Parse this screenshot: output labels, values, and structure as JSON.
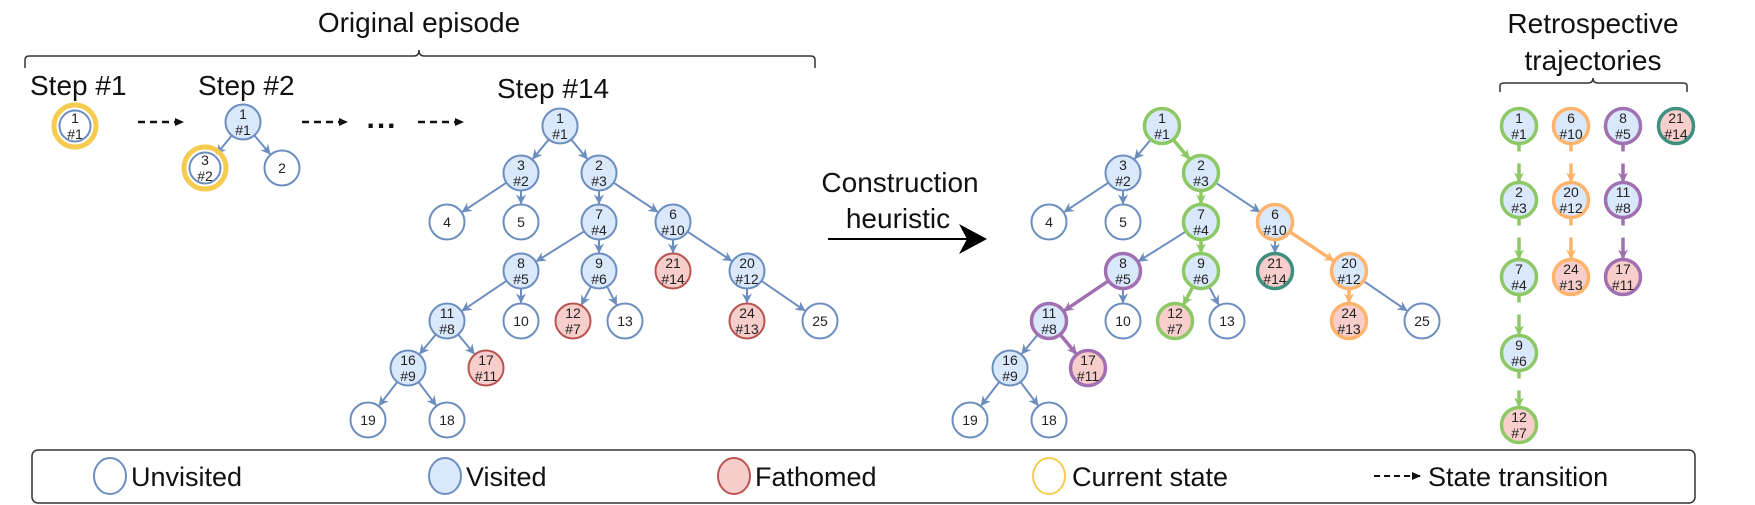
{
  "titles": {
    "original": "Original episode",
    "retro_line1": "Retrospective",
    "retro_line2": "trajectories",
    "step1": "Step #1",
    "step2": "Step #2",
    "step14": "Step #14",
    "heuristic_line1": "Construction",
    "heuristic_line2": "heuristic",
    "ellipsis": "..."
  },
  "colors": {
    "blue": "#6c8ebf",
    "visited_fill": "#dae8fc",
    "fathomed_fill": "#f8cecc",
    "fathomed_stroke": "#b85450",
    "current": "#f5cc4f",
    "green": "#8cc864",
    "orange": "#ffb36b",
    "purple": "#a070b0",
    "teal": "#3f8f7f"
  },
  "trees": {
    "step1": {
      "nodes": [
        {
          "id": "1",
          "visit": "#1",
          "status": "unvisited",
          "ring": "current"
        }
      ],
      "edges": []
    },
    "step2": {
      "nodes": [
        {
          "id": "1",
          "visit": "#1",
          "status": "visited"
        },
        {
          "id": "3",
          "visit": "#2",
          "status": "unvisited",
          "ring": "current"
        },
        {
          "id": "2",
          "visit": "",
          "status": "unvisited"
        }
      ],
      "edges": [
        [
          "1",
          "3",
          "blue"
        ],
        [
          "1",
          "2",
          "blue"
        ]
      ]
    },
    "step14": {
      "nodes": [
        {
          "id": "1",
          "visit": "#1",
          "status": "visited"
        },
        {
          "id": "3",
          "visit": "#2",
          "status": "visited"
        },
        {
          "id": "2",
          "visit": "#3",
          "status": "visited"
        },
        {
          "id": "4",
          "visit": "",
          "status": "unvisited"
        },
        {
          "id": "5",
          "visit": "",
          "status": "unvisited"
        },
        {
          "id": "7",
          "visit": "#4",
          "status": "visited"
        },
        {
          "id": "6",
          "visit": "#10",
          "status": "visited"
        },
        {
          "id": "8",
          "visit": "#5",
          "status": "visited"
        },
        {
          "id": "9",
          "visit": "#6",
          "status": "visited"
        },
        {
          "id": "21",
          "visit": "#14",
          "status": "fathomed"
        },
        {
          "id": "20",
          "visit": "#12",
          "status": "visited"
        },
        {
          "id": "11",
          "visit": "#8",
          "status": "visited"
        },
        {
          "id": "10",
          "visit": "",
          "status": "unvisited"
        },
        {
          "id": "12",
          "visit": "#7",
          "status": "fathomed"
        },
        {
          "id": "13",
          "visit": "",
          "status": "unvisited"
        },
        {
          "id": "24",
          "visit": "#13",
          "status": "fathomed"
        },
        {
          "id": "25",
          "visit": "",
          "status": "unvisited"
        },
        {
          "id": "16",
          "visit": "#9",
          "status": "visited"
        },
        {
          "id": "17",
          "visit": "#11",
          "status": "fathomed"
        },
        {
          "id": "19",
          "visit": "",
          "status": "unvisited"
        },
        {
          "id": "18",
          "visit": "",
          "status": "unvisited"
        }
      ],
      "edges": [
        [
          "1",
          "3",
          "blue"
        ],
        [
          "1",
          "2",
          "blue"
        ],
        [
          "3",
          "4",
          "blue"
        ],
        [
          "3",
          "5",
          "blue"
        ],
        [
          "2",
          "7",
          "blue"
        ],
        [
          "2",
          "6",
          "blue"
        ],
        [
          "7",
          "8",
          "blue"
        ],
        [
          "7",
          "9",
          "blue"
        ],
        [
          "6",
          "21",
          "blue"
        ],
        [
          "6",
          "20",
          "blue"
        ],
        [
          "8",
          "11",
          "blue"
        ],
        [
          "8",
          "10",
          "blue"
        ],
        [
          "9",
          "12",
          "blue"
        ],
        [
          "9",
          "13",
          "blue"
        ],
        [
          "20",
          "24",
          "blue"
        ],
        [
          "20",
          "25",
          "blue"
        ],
        [
          "11",
          "16",
          "blue"
        ],
        [
          "11",
          "17",
          "blue"
        ],
        [
          "16",
          "19",
          "blue"
        ],
        [
          "16",
          "18",
          "blue"
        ]
      ]
    },
    "heuristic": {
      "nodes": [
        {
          "id": "1",
          "visit": "#1",
          "status": "visited",
          "stroke": "green"
        },
        {
          "id": "3",
          "visit": "#2",
          "status": "visited"
        },
        {
          "id": "2",
          "visit": "#3",
          "status": "visited",
          "stroke": "green"
        },
        {
          "id": "4",
          "visit": "",
          "status": "unvisited"
        },
        {
          "id": "5",
          "visit": "",
          "status": "unvisited"
        },
        {
          "id": "7",
          "visit": "#4",
          "status": "visited",
          "stroke": "green"
        },
        {
          "id": "6",
          "visit": "#10",
          "status": "visited",
          "stroke": "orange"
        },
        {
          "id": "8",
          "visit": "#5",
          "status": "visited",
          "stroke": "purple"
        },
        {
          "id": "9",
          "visit": "#6",
          "status": "visited",
          "stroke": "green"
        },
        {
          "id": "21",
          "visit": "#14",
          "status": "fathomed",
          "stroke": "teal"
        },
        {
          "id": "20",
          "visit": "#12",
          "status": "visited",
          "stroke": "orange"
        },
        {
          "id": "11",
          "visit": "#8",
          "status": "visited",
          "stroke": "purple"
        },
        {
          "id": "10",
          "visit": "",
          "status": "unvisited"
        },
        {
          "id": "12",
          "visit": "#7",
          "status": "fathomed",
          "stroke": "green"
        },
        {
          "id": "13",
          "visit": "",
          "status": "unvisited"
        },
        {
          "id": "24",
          "visit": "#13",
          "status": "fathomed",
          "stroke": "orange"
        },
        {
          "id": "25",
          "visit": "",
          "status": "unvisited"
        },
        {
          "id": "16",
          "visit": "#9",
          "status": "visited"
        },
        {
          "id": "17",
          "visit": "#11",
          "status": "fathomed",
          "stroke": "purple"
        },
        {
          "id": "19",
          "visit": "",
          "status": "unvisited"
        },
        {
          "id": "18",
          "visit": "",
          "status": "unvisited"
        }
      ],
      "edges": [
        [
          "1",
          "3",
          "blue"
        ],
        [
          "1",
          "2",
          "green"
        ],
        [
          "3",
          "4",
          "blue"
        ],
        [
          "3",
          "5",
          "blue"
        ],
        [
          "2",
          "7",
          "green"
        ],
        [
          "2",
          "6",
          "blue"
        ],
        [
          "7",
          "8",
          "blue"
        ],
        [
          "7",
          "9",
          "green"
        ],
        [
          "6",
          "21",
          "blue"
        ],
        [
          "6",
          "20",
          "orange"
        ],
        [
          "8",
          "11",
          "purple"
        ],
        [
          "8",
          "10",
          "blue"
        ],
        [
          "9",
          "12",
          "green"
        ],
        [
          "9",
          "13",
          "blue"
        ],
        [
          "20",
          "24",
          "orange"
        ],
        [
          "20",
          "25",
          "blue"
        ],
        [
          "11",
          "16",
          "blue"
        ],
        [
          "11",
          "17",
          "purple"
        ],
        [
          "16",
          "19",
          "blue"
        ],
        [
          "16",
          "18",
          "blue"
        ]
      ]
    }
  },
  "trajectories": [
    {
      "color": "green",
      "nodes": [
        {
          "id": "1",
          "visit": "#1",
          "status": "visited"
        },
        {
          "id": "2",
          "visit": "#3",
          "status": "visited"
        },
        {
          "id": "7",
          "visit": "#4",
          "status": "visited"
        },
        {
          "id": "9",
          "visit": "#6",
          "status": "visited"
        },
        {
          "id": "12",
          "visit": "#7",
          "status": "fathomed"
        }
      ]
    },
    {
      "color": "orange",
      "nodes": [
        {
          "id": "6",
          "visit": "#10",
          "status": "visited"
        },
        {
          "id": "20",
          "visit": "#12",
          "status": "visited"
        },
        {
          "id": "24",
          "visit": "#13",
          "status": "fathomed"
        }
      ]
    },
    {
      "color": "purple",
      "nodes": [
        {
          "id": "8",
          "visit": "#5",
          "status": "visited"
        },
        {
          "id": "11",
          "visit": "#8",
          "status": "visited"
        },
        {
          "id": "17",
          "visit": "#11",
          "status": "fathomed"
        }
      ]
    },
    {
      "color": "teal",
      "nodes": [
        {
          "id": "21",
          "visit": "#14",
          "status": "fathomed"
        }
      ]
    }
  ],
  "legend": {
    "unvisited": "Unvisited",
    "visited": "Visited",
    "fathomed": "Fathomed",
    "current": "Current state",
    "transition": "State transition"
  }
}
